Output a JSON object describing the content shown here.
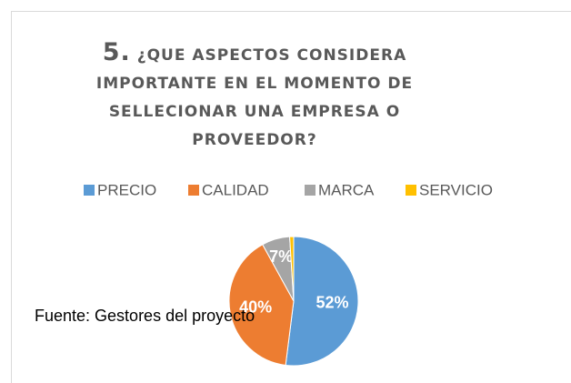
{
  "chart_data": {
    "type": "pie",
    "title_number": "5.",
    "title": "¿QUE ASPECTOS CONSIDERA IMPORTANTE EN EL MOMENTO DE SELLECIONAR UNA EMPRESA O PROVEEDOR?",
    "categories": [
      "PRECIO",
      "CALIDAD",
      "MARCA",
      "SERVICIO"
    ],
    "values": [
      52,
      40,
      7,
      1
    ],
    "value_labels": [
      "52%",
      "40%",
      "7%",
      null
    ],
    "colors": [
      "#5b9bd5",
      "#ed7d31",
      "#a5a5a5",
      "#ffc000"
    ],
    "legend": "top",
    "annotation": "Fuente: Gestores del proyecto"
  }
}
